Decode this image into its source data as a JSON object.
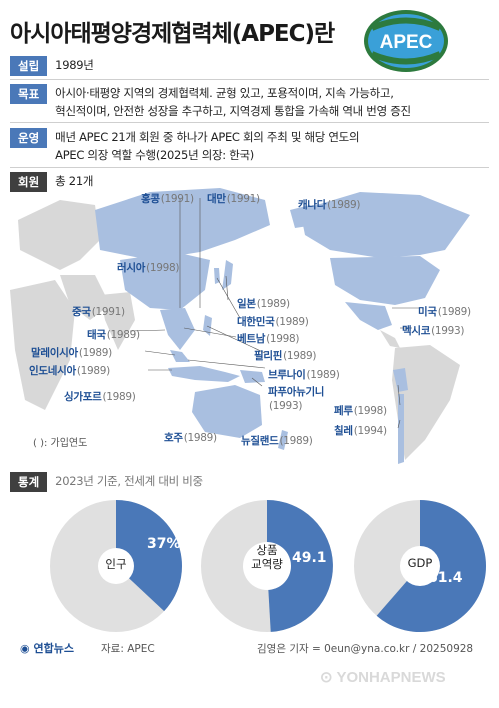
{
  "title": "아시아태평양경제협력체(APEC)란",
  "logo_text": "APEC",
  "rows": {
    "founded": {
      "tag": "설립",
      "text": "1989년"
    },
    "goal": {
      "tag": "목표",
      "line1": "아시아·태평양 지역의 경제협력체. 균형 있고, 포용적이며, 지속 가능하고,",
      "line2": "혁신적이며, 안전한 성장을 추구하고, 지역경제 통합을 가속해 역내 번영 증진"
    },
    "operation": {
      "tag": "운영",
      "line1": "매년 APEC 21개 회원 중 하나가 APEC 회의 주최 및 해당 연도의",
      "line2": "APEC 의장 역할 수행(2025년 의장: 한국)"
    },
    "members": {
      "tag": "회원",
      "text": "총 21개"
    }
  },
  "members": [
    {
      "name": "홍콩",
      "year": "(1991)"
    },
    {
      "name": "대만",
      "year": "(1991)"
    },
    {
      "name": "캐나다",
      "year": "(1989)"
    },
    {
      "name": "러시아",
      "year": "(1998)"
    },
    {
      "name": "일본",
      "year": "(1989)"
    },
    {
      "name": "중국",
      "year": "(1991)"
    },
    {
      "name": "대한민국",
      "year": "(1989)"
    },
    {
      "name": "미국",
      "year": "(1989)"
    },
    {
      "name": "태국",
      "year": "(1989)"
    },
    {
      "name": "베트남",
      "year": "(1998)"
    },
    {
      "name": "멕시코",
      "year": "(1993)"
    },
    {
      "name": "말레이시아",
      "year": "(1989)"
    },
    {
      "name": "필리핀",
      "year": "(1989)"
    },
    {
      "name": "인도네시아",
      "year": "(1989)"
    },
    {
      "name": "브루나이",
      "year": "(1989)"
    },
    {
      "name": "싱가포르",
      "year": "(1989)"
    },
    {
      "name": "파푸아뉴기니",
      "year": "(1993)"
    },
    {
      "name": "페루",
      "year": "(1998)"
    },
    {
      "name": "칠레",
      "year": "(1994)"
    },
    {
      "name": "호주",
      "year": "(1989)"
    },
    {
      "name": "뉴질랜드",
      "year": "(1989)"
    }
  ],
  "map_note": "( ): 가입연도",
  "stats": {
    "tag": "통계",
    "subtitle": "2023년 기준, 전세계 대비 비중",
    "pies": [
      {
        "label": "인구",
        "value": "37%",
        "share": 37
      },
      {
        "label": "상품\n교역량",
        "label1": "상품",
        "label2": "교역량",
        "value": "49.1",
        "share": 49.1
      },
      {
        "label": "GDP",
        "value": "61.4",
        "share": 61.4
      }
    ]
  },
  "footer": {
    "agency": "연합뉴스",
    "source": "자료: APEC",
    "credit": "김영은 기자 = 0eun@yna.co.kr / 20250928",
    "watermark": "YONHAPNEWS"
  },
  "colors": {
    "accent": "#4a78b8",
    "land_member": "#a9bfe0",
    "land_other": "#d8d8d8",
    "pie_rest": "#e0e0e0"
  }
}
